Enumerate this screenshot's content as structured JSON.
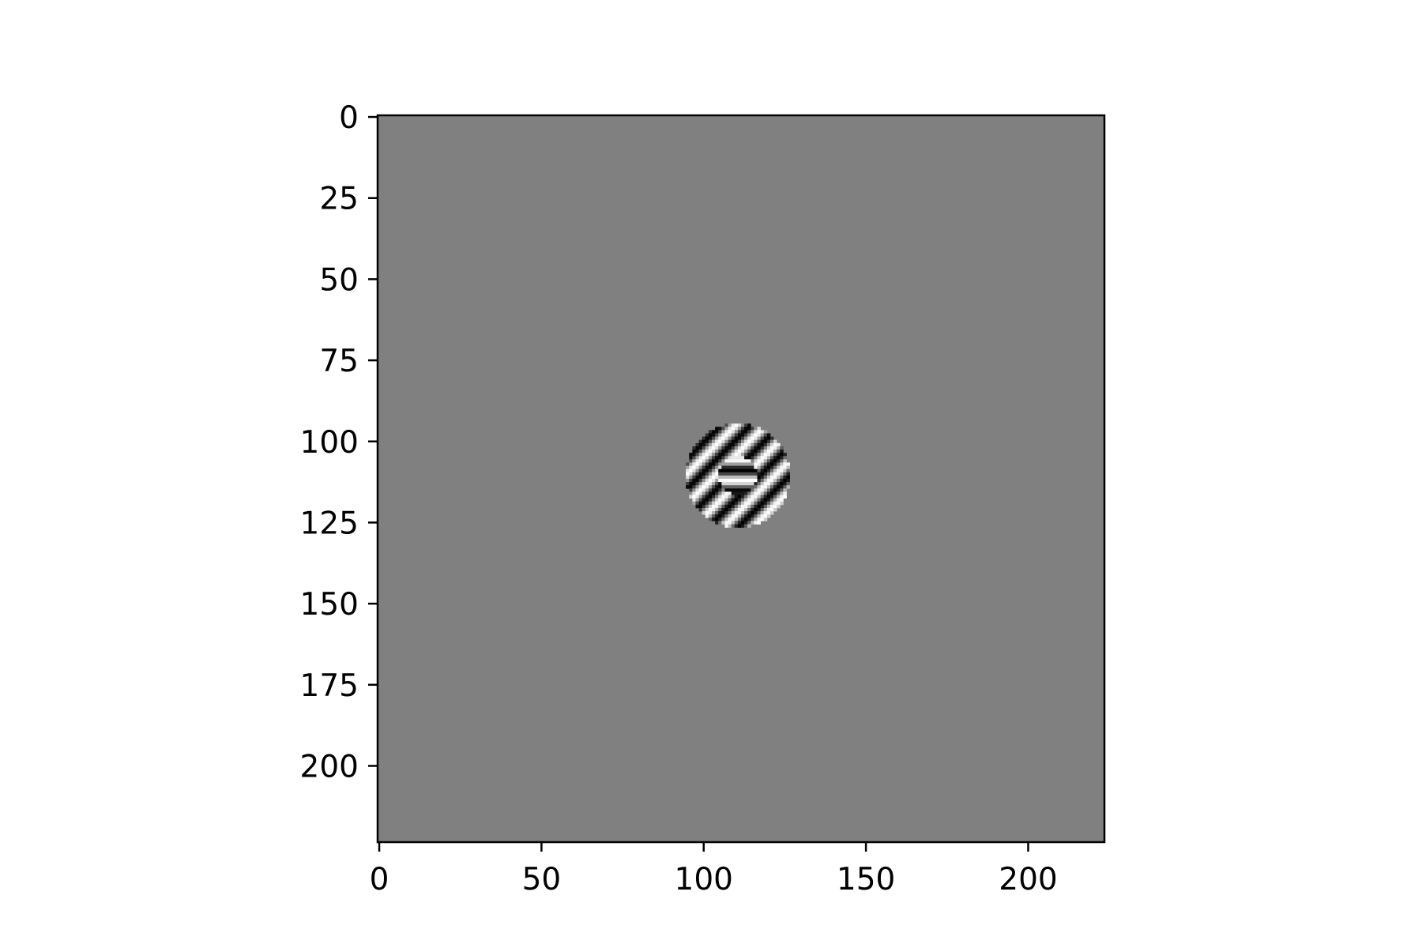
{
  "chart_data": {
    "type": "heatmap",
    "title": "",
    "xlabel": "",
    "ylabel": "",
    "image": {
      "width": 224,
      "height": 224,
      "background_value": 0.5,
      "colormap": "gray",
      "stimulus": "center-surround grating",
      "center": [
        111,
        111
      ],
      "outer_radius": 16,
      "inner_radius": 6,
      "surround_orientation_deg": 45,
      "center_orientation_deg": 90,
      "period_px": 6.5
    },
    "xlim": [
      0,
      224
    ],
    "ylim": [
      224,
      0
    ],
    "x_ticks": [
      0,
      50,
      100,
      150,
      200
    ],
    "y_ticks": [
      0,
      25,
      50,
      75,
      100,
      125,
      150,
      175,
      200
    ],
    "grid": false,
    "colors": {
      "background": "#808080",
      "frame": "#000000"
    }
  }
}
